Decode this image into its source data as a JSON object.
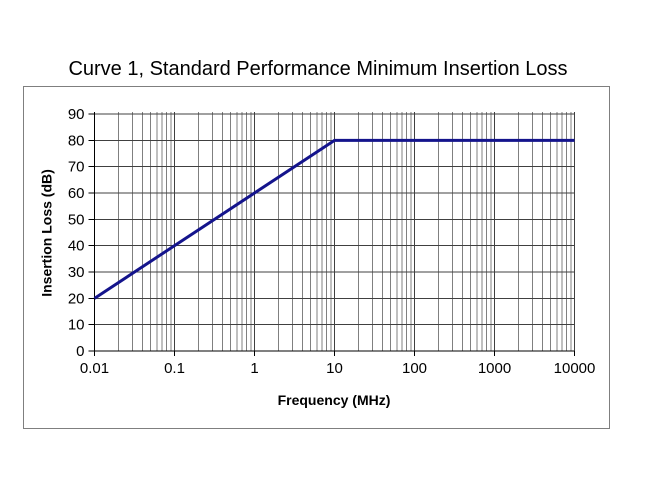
{
  "chart_data": {
    "type": "line",
    "title": "Curve 1, Standard Performance Minimum Insertion Loss",
    "xlabel": "Frequency (MHz)",
    "ylabel": "Insertion Loss (dB)",
    "x_scale": "log",
    "y_scale": "linear",
    "xlim": [
      0.01,
      10000
    ],
    "ylim": [
      0,
      90
    ],
    "x_tick_labels": [
      "0.01",
      "0.1",
      "1",
      "10",
      "100",
      "1000",
      "10000"
    ],
    "y_tick_labels": [
      "0",
      "10",
      "20",
      "30",
      "40",
      "50",
      "60",
      "70",
      "80",
      "90"
    ],
    "grid": {
      "major_x": true,
      "minor_x": true,
      "major_y": true,
      "minor_y": false
    },
    "legend_position": "none",
    "series": [
      {
        "name": "Curve 1",
        "color": "#14148C",
        "stroke_width": 3,
        "points": [
          [
            0.01,
            20
          ],
          [
            10,
            80
          ],
          [
            10000,
            80
          ]
        ]
      }
    ],
    "colors": {
      "background": "#FFFFFF",
      "plot_border": "#7F7F7F",
      "major_grid": "#404040",
      "minor_grid": "#808080",
      "axis": "#000000",
      "text": "#000000"
    }
  }
}
